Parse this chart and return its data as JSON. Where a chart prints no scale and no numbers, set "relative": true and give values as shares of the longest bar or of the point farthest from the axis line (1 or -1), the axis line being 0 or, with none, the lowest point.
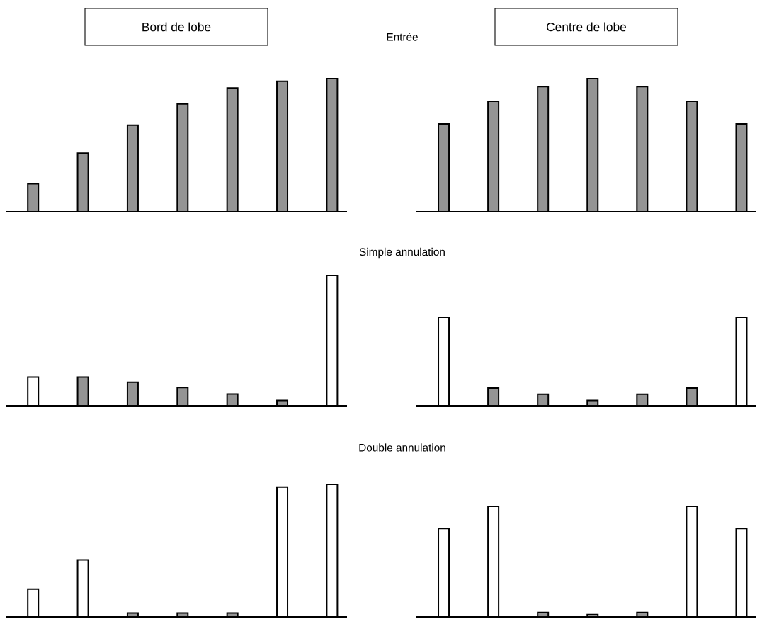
{
  "chart_data": [
    {
      "type": "bar",
      "title": "Bord de lobe",
      "annotations": [
        "Entrée"
      ],
      "relative": true,
      "categories": [
        null,
        null,
        null,
        null,
        null,
        null,
        null
      ],
      "values": [
        0.21,
        0.44,
        0.65,
        0.81,
        0.93,
        0.98,
        1
      ],
      "colors": [
        "#949494",
        "#949494",
        "#949494",
        "#949494",
        "#949494",
        "#949494",
        "#949494"
      ]
    },
    {
      "type": "bar",
      "title": "Centre de lobe",
      "relative": true,
      "categories": [
        null,
        null,
        null,
        null,
        null,
        null,
        null
      ],
      "values": [
        0.66,
        0.83,
        0.94,
        1,
        0.94,
        0.83,
        0.66
      ],
      "colors": [
        "#949494",
        "#949494",
        "#949494",
        "#949494",
        "#949494",
        "#949494",
        "#949494"
      ]
    },
    {
      "type": "bar",
      "annotations": [
        "Simple annulation"
      ],
      "relative": true,
      "categories": [
        null,
        null,
        null,
        null,
        null,
        null,
        null
      ],
      "values": [
        0.22,
        0.22,
        0.18,
        0.14,
        0.09,
        0.04,
        1
      ],
      "colors": [
        "#ffffff",
        "#949494",
        "#949494",
        "#949494",
        "#949494",
        "#949494",
        "#ffffff"
      ]
    },
    {
      "type": "bar",
      "relative": true,
      "categories": [
        null,
        null,
        null,
        null,
        null,
        null,
        null
      ],
      "values": [
        1,
        0.2,
        0.13,
        0.06,
        0.13,
        0.2,
        1
      ],
      "colors": [
        "#ffffff",
        "#949494",
        "#949494",
        "#949494",
        "#949494",
        "#949494",
        "#ffffff"
      ]
    },
    {
      "type": "bar",
      "annotations": [
        "Double annulation"
      ],
      "relative": true,
      "categories": [
        null,
        null,
        null,
        null,
        null,
        null,
        null
      ],
      "values": [
        0.21,
        0.43,
        0.03,
        0.03,
        0.03,
        0.98,
        1
      ],
      "colors": [
        "#ffffff",
        "#ffffff",
        "#949494",
        "#949494",
        "#949494",
        "#ffffff",
        "#ffffff"
      ]
    },
    {
      "type": "bar",
      "relative": true,
      "categories": [
        null,
        null,
        null,
        null,
        null,
        null,
        null
      ],
      "values": [
        0.8,
        1,
        0.04,
        0.02,
        0.04,
        1,
        0.8
      ],
      "colors": [
        "#ffffff",
        "#ffffff",
        "#949494",
        "#949494",
        "#949494",
        "#ffffff",
        "#ffffff"
      ]
    }
  ]
}
